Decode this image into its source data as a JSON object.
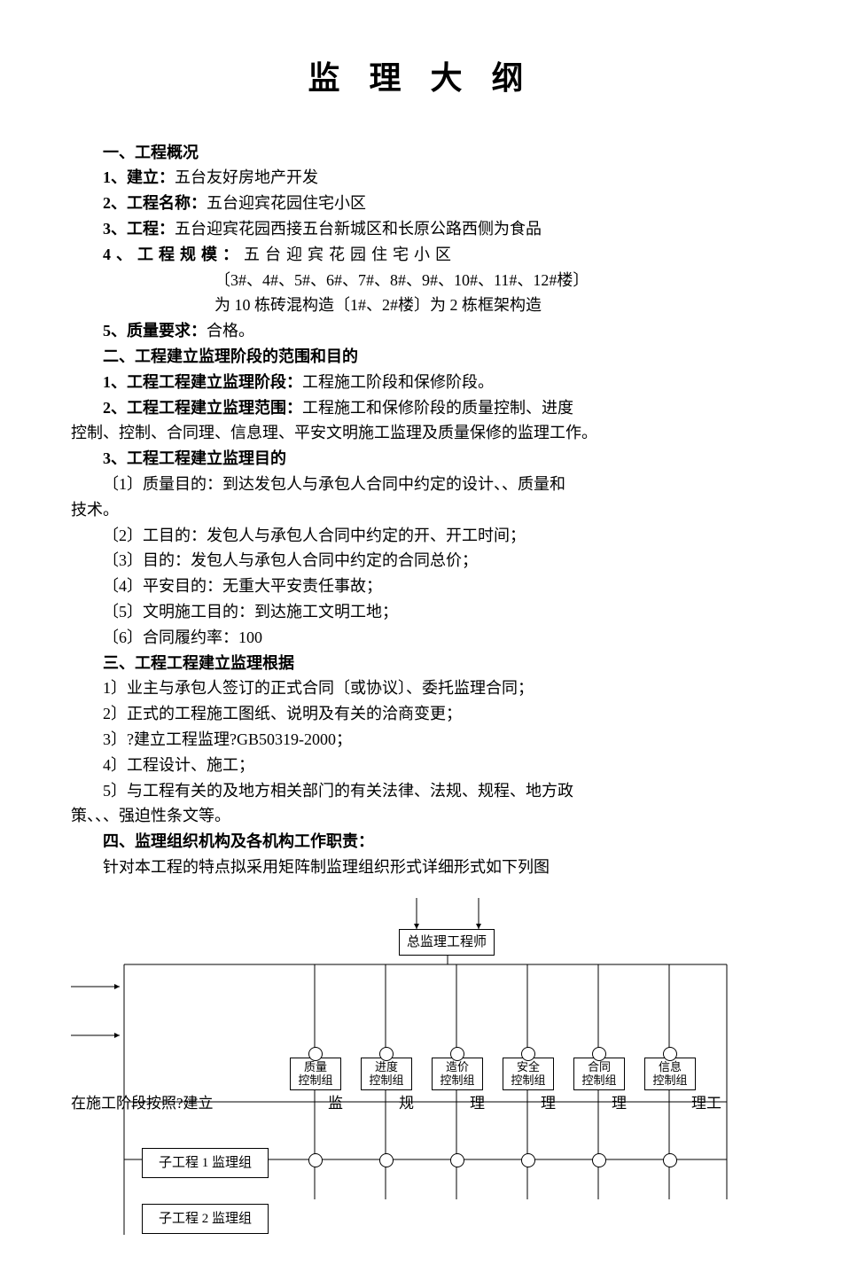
{
  "title": "监 理 大 纲",
  "s1": {
    "head": "一、工程概况",
    "i1l": "1、建立：",
    "i1v": "五台友好房地产开发",
    "i2l": "2、工程名称：",
    "i2v": "五台迎宾花园住宅小区",
    "i3l": "3、工程：",
    "i3v": "五台迎宾花园西接五台新城区和长原公路西侧为食品",
    "i4l": "4、工程规模：",
    "i4v1": "五台迎宾花园住宅小区",
    "i4v2": "〔3#、4#、5#、6#、7#、8#、9#、10#、11#、12#楼〕",
    "i4v3": "为 10 栋砖混构造〔1#、2#楼〕为 2 栋框架构造",
    "i5l": "5、质量要求：",
    "i5v": "合格。"
  },
  "s2": {
    "head": "二、工程建立监理阶段的范围和目的",
    "i1l": "1、工程工程建立监理阶段：",
    "i1v": "工程施工阶段和保修阶段。",
    "i2l": "2、工程工程建立监理范围：",
    "i2v": "工程施工和保修阶段的质量控制、进度",
    "i2v2": "控制、控制、合同理、信息理、平安文明施工监理及质量保修的监理工作。",
    "i3l": "3、工程工程建立监理目的",
    "g1": "〔1〕质量目的：到达发包人与承包人合同中约定的设计、、质量和",
    "g1b": "技术。",
    "g2": "〔2〕工目的：发包人与承包人合同中约定的开、开工时间；",
    "g3": "〔3〕目的：发包人与承包人合同中约定的合同总价；",
    "g4": "〔4〕平安目的：无重大平安责任事故；",
    "g5": "〔5〕文明施工目的：到达施工文明工地；",
    "g6": "〔6〕合同履约率：100"
  },
  "s3": {
    "head": "三、工程工程建立监理根据",
    "b1": "1〕业主与承包人签订的正式合同〔或协议〕、委托监理合同；",
    "b2": "2〕正式的工程施工图纸、说明及有关的洽商变更；",
    "b3": "3〕?建立工程监理?GB50319-2000；",
    "b4": "4〕工程设计、施工；",
    "b5": "5〕与工程有关的及地方相关部门的有关法律、法规、规程、地方政",
    "b5b": "策、、、强迫性条文等。"
  },
  "s4": {
    "head": "四、监理组织机构及各机构工作职责：",
    "p1": "针对本工程的特点拟采用矩阵制监理组织形式详细形式如下列图"
  },
  "chart": {
    "top": "总监理工程师",
    "cols": [
      "质量\n控制组",
      "进度\n控制组",
      "造价\n控制组",
      "安全\n控制组",
      "合同\n控制组",
      "信息\n控制组"
    ],
    "rowtext_a": "在施工阶段按照?建立",
    "rowtext_b": "监",
    "rowtext_c": "规",
    "rowtext_d": "理",
    "rowtext_e": "理",
    "rowtext_f": "理",
    "rowtext_g": "理工",
    "sub1": "子工程 1 监理组",
    "sub2": "子工程 2 监理组",
    "colors": {
      "line": "#000",
      "bg": "#fff"
    }
  }
}
